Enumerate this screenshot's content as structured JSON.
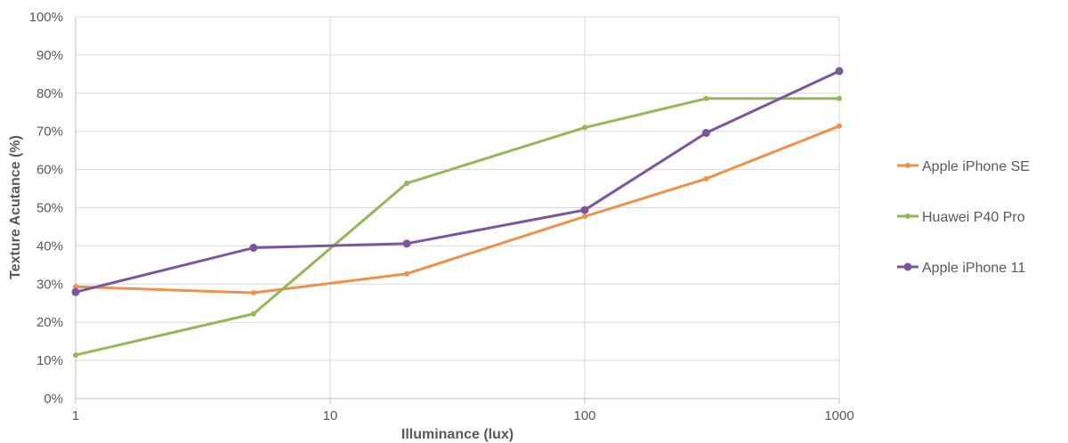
{
  "chart_data": {
    "type": "line",
    "xlabel": "Illuminance (lux)",
    "ylabel": "Texture Acutance (%)",
    "x_scale": "log",
    "xlim": [
      1,
      1000
    ],
    "ylim": [
      0,
      100
    ],
    "x_ticks": [
      1,
      10,
      100,
      1000
    ],
    "y_ticks": [
      0,
      10,
      20,
      30,
      40,
      50,
      60,
      70,
      80,
      90,
      100
    ],
    "y_tick_suffix": "%",
    "grid": true,
    "legend_position": "right",
    "series": [
      {
        "name": "Apple iPhone SE",
        "color": "#f0914a",
        "marker_size": 3,
        "x": [
          1,
          5,
          20,
          100,
          300,
          1000
        ],
        "y": [
          29.3,
          27.7,
          32.7,
          47.7,
          57.6,
          71.4
        ]
      },
      {
        "name": "Huawei P40 Pro",
        "color": "#93b858",
        "marker_size": 3,
        "x": [
          1,
          5,
          20,
          100,
          300,
          1000
        ],
        "y": [
          11.4,
          22.2,
          56.4,
          71.0,
          78.6,
          78.6
        ]
      },
      {
        "name": "Apple iPhone 11",
        "color": "#7b569f",
        "marker_size": 4.5,
        "x": [
          1,
          5,
          20,
          100,
          300,
          1000
        ],
        "y": [
          27.9,
          39.5,
          40.6,
          49.4,
          69.6,
          85.8
        ]
      }
    ]
  }
}
